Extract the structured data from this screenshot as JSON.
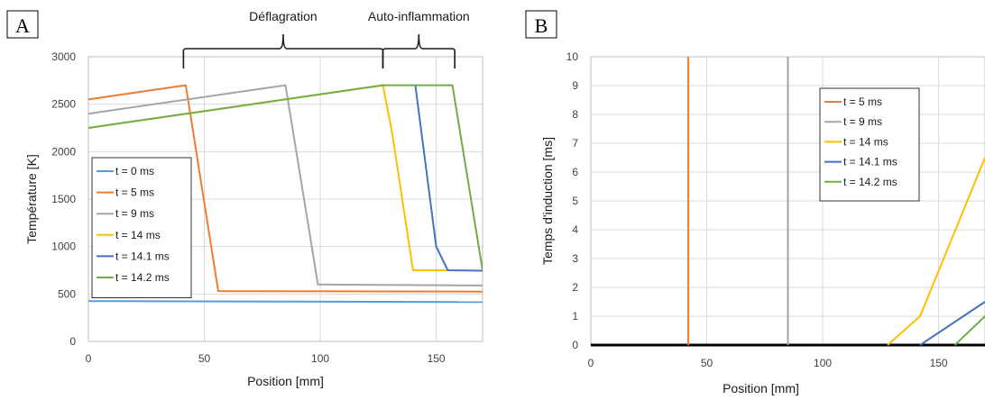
{
  "chart_data": [
    {
      "panel_label": "A",
      "type": "line",
      "xlabel": "Position [mm]",
      "ylabel": "Température [K]",
      "xlim": [
        0,
        170
      ],
      "ylim": [
        0,
        3000
      ],
      "x_ticks": [
        0,
        50,
        100,
        150
      ],
      "y_ticks": [
        0,
        500,
        1000,
        1500,
        2000,
        2500,
        3000
      ],
      "grid": true,
      "legend_position": "bottom-left",
      "brackets": [
        {
          "label": "Déflagration",
          "from": 41,
          "to": 127
        },
        {
          "label": "Auto-inflammation",
          "from": 127,
          "to": 158
        }
      ],
      "series": [
        {
          "name": "t = 0 ms",
          "color": "#5b9bd5",
          "x": [
            0,
            170
          ],
          "y": [
            425,
            415
          ]
        },
        {
          "name": "t = 5 ms",
          "color": "#ed7d31",
          "x": [
            0,
            42,
            56,
            170
          ],
          "y": [
            2550,
            2700,
            530,
            525
          ]
        },
        {
          "name": "t = 9 ms",
          "color": "#a5a5a5",
          "x": [
            0,
            85,
            99,
            170
          ],
          "y": [
            2400,
            2700,
            600,
            590
          ]
        },
        {
          "name": "t = 14 ms",
          "color": "#ffc000",
          "x": [
            0,
            127,
            131,
            140,
            155
          ],
          "y": [
            2250,
            2700,
            2200,
            750,
            750
          ]
        },
        {
          "name": "t = 14.1 ms",
          "color": "#4472c4",
          "x": [
            141,
            150,
            155,
            170
          ],
          "y": [
            2700,
            1000,
            750,
            745
          ]
        },
        {
          "name": "t = 14.2 ms",
          "color": "#70ad47",
          "x": [
            0,
            127,
            157,
            170
          ],
          "y": [
            2250,
            2700,
            2700,
            750
          ]
        }
      ]
    },
    {
      "panel_label": "B",
      "type": "line",
      "xlabel": "Position [mm]",
      "ylabel": "Temps d'induction [ms]",
      "xlim": [
        0,
        170
      ],
      "ylim": [
        0,
        10
      ],
      "x_ticks": [
        0,
        50,
        100,
        150
      ],
      "y_ticks": [
        0,
        1,
        2,
        3,
        4,
        5,
        6,
        7,
        8,
        9,
        10
      ],
      "grid": true,
      "legend_position": "top-center",
      "baseline": {
        "color": "#000000",
        "x": [
          0,
          170
        ],
        "y": [
          0,
          0
        ]
      },
      "series": [
        {
          "name": "t = 5 ms",
          "color": "#ed7d31",
          "x": [
            42,
            42
          ],
          "y": [
            0,
            10
          ]
        },
        {
          "name": "t = 9 ms",
          "color": "#a5a5a5",
          "x": [
            85,
            85
          ],
          "y": [
            0,
            10
          ]
        },
        {
          "name": "t = 14 ms",
          "color": "#ffc000",
          "x": [
            128,
            142,
            170
          ],
          "y": [
            0,
            1,
            6.5
          ]
        },
        {
          "name": "t = 14.1 ms",
          "color": "#4472c4",
          "x": [
            142,
            170
          ],
          "y": [
            0,
            1.5
          ]
        },
        {
          "name": "t = 14.2 ms",
          "color": "#70ad47",
          "x": [
            157,
            170
          ],
          "y": [
            0,
            1
          ]
        }
      ]
    }
  ]
}
